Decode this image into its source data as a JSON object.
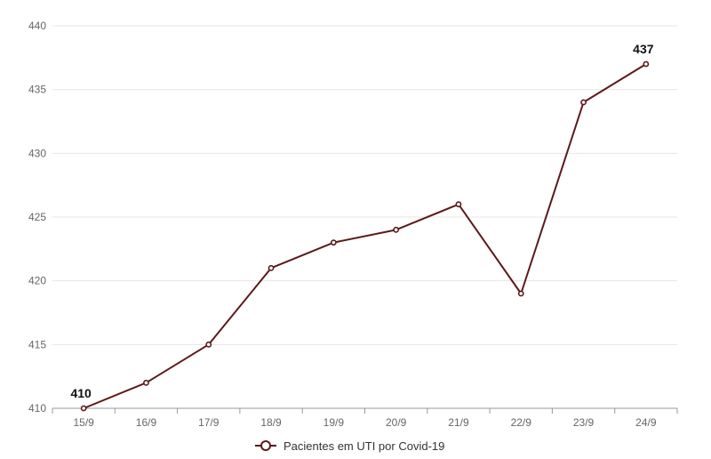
{
  "chart_data": {
    "type": "line",
    "categories": [
      "15/9",
      "16/9",
      "17/9",
      "18/9",
      "19/9",
      "20/9",
      "21/9",
      "22/9",
      "23/9",
      "24/9"
    ],
    "series": [
      {
        "name": "Pacientes em UTI por Covid-19",
        "values": [
          410,
          412,
          415,
          421,
          423,
          424,
          426,
          419,
          434,
          437
        ]
      }
    ],
    "data_labels": [
      {
        "category": "15/9",
        "text": "410"
      },
      {
        "category": "24/9",
        "text": "437"
      }
    ],
    "title": "",
    "xlabel": "",
    "ylabel": "",
    "ylim": [
      410,
      440
    ],
    "yticks": [
      410,
      415,
      420,
      425,
      430,
      435,
      440
    ],
    "grid": true,
    "legend_position": "bottom",
    "colors": {
      "line": "#5c1a1a",
      "grid": "#e6e6e6",
      "axis": "#999999"
    }
  }
}
